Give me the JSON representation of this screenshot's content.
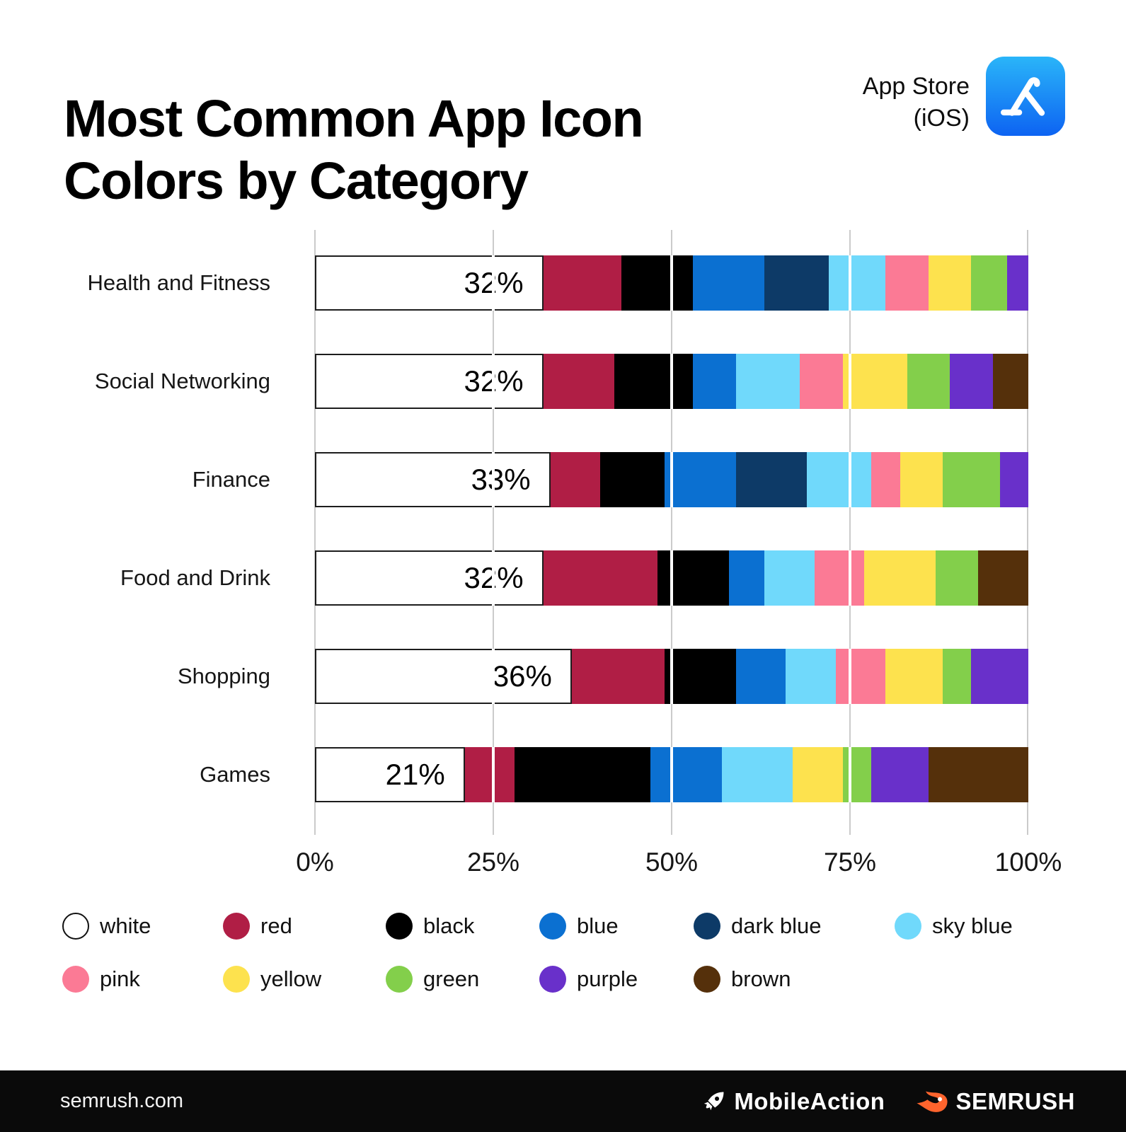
{
  "header": {
    "title": "Most Common App Icon Colors by Category",
    "platform_line1": "App Store",
    "platform_line2": "(iOS)"
  },
  "chart_data": {
    "type": "bar",
    "stacked": true,
    "orientation": "horizontal",
    "unit": "percent",
    "title": "Most Common App Icon Colors by Category",
    "categories": [
      "Health and Fitness",
      "Social Networking",
      "Finance",
      "Food and Drink",
      "Shopping",
      "Games"
    ],
    "colors": [
      {
        "name": "white",
        "label": "white",
        "hex": "#ffffff"
      },
      {
        "name": "red",
        "label": "red",
        "hex": "#b01e45"
      },
      {
        "name": "black",
        "label": "black",
        "hex": "#000000"
      },
      {
        "name": "blue",
        "label": "blue",
        "hex": "#0b70d1"
      },
      {
        "name": "dark_blue",
        "label": "dark blue",
        "hex": "#0d3a67"
      },
      {
        "name": "sky_blue",
        "label": "sky blue",
        "hex": "#70d9fb"
      },
      {
        "name": "pink",
        "label": "pink",
        "hex": "#fb7a95"
      },
      {
        "name": "yellow",
        "label": "yellow",
        "hex": "#fde24e"
      },
      {
        "name": "green",
        "label": "green",
        "hex": "#83cf4b"
      },
      {
        "name": "purple",
        "label": "purple",
        "hex": "#6930ca"
      },
      {
        "name": "brown",
        "label": "brown",
        "hex": "#55300b"
      }
    ],
    "series": [
      {
        "name": "white",
        "values": [
          32,
          32,
          33,
          32,
          36,
          21
        ]
      },
      {
        "name": "red",
        "values": [
          11,
          10,
          7,
          16,
          13,
          7
        ]
      },
      {
        "name": "black",
        "values": [
          10,
          11,
          9,
          10,
          10,
          19
        ]
      },
      {
        "name": "blue",
        "values": [
          10,
          6,
          10,
          5,
          7,
          10
        ]
      },
      {
        "name": "dark blue",
        "values": [
          9,
          0,
          10,
          0,
          0,
          0
        ]
      },
      {
        "name": "sky blue",
        "values": [
          8,
          9,
          9,
          7,
          7,
          10
        ]
      },
      {
        "name": "pink",
        "values": [
          6,
          6,
          4,
          7,
          7,
          0
        ]
      },
      {
        "name": "yellow",
        "values": [
          6,
          9,
          6,
          10,
          8,
          7
        ]
      },
      {
        "name": "green",
        "values": [
          5,
          6,
          8,
          6,
          4,
          4
        ]
      },
      {
        "name": "purple",
        "values": [
          3,
          6,
          4,
          0,
          8,
          8
        ]
      },
      {
        "name": "brown",
        "values": [
          0,
          5,
          0,
          7,
          0,
          14
        ]
      }
    ],
    "bar_labels": [
      "32%",
      "32%",
      "33%",
      "32%",
      "36%",
      "21%"
    ],
    "x_ticks": [
      "0%",
      "25%",
      "50%",
      "75%",
      "100%"
    ],
    "xlim": [
      0,
      100
    ],
    "grid": true,
    "legend_position": "bottom"
  },
  "footer": {
    "website": "semrush.com",
    "partner1": "MobileAction",
    "partner2": "SEMRUSH"
  }
}
